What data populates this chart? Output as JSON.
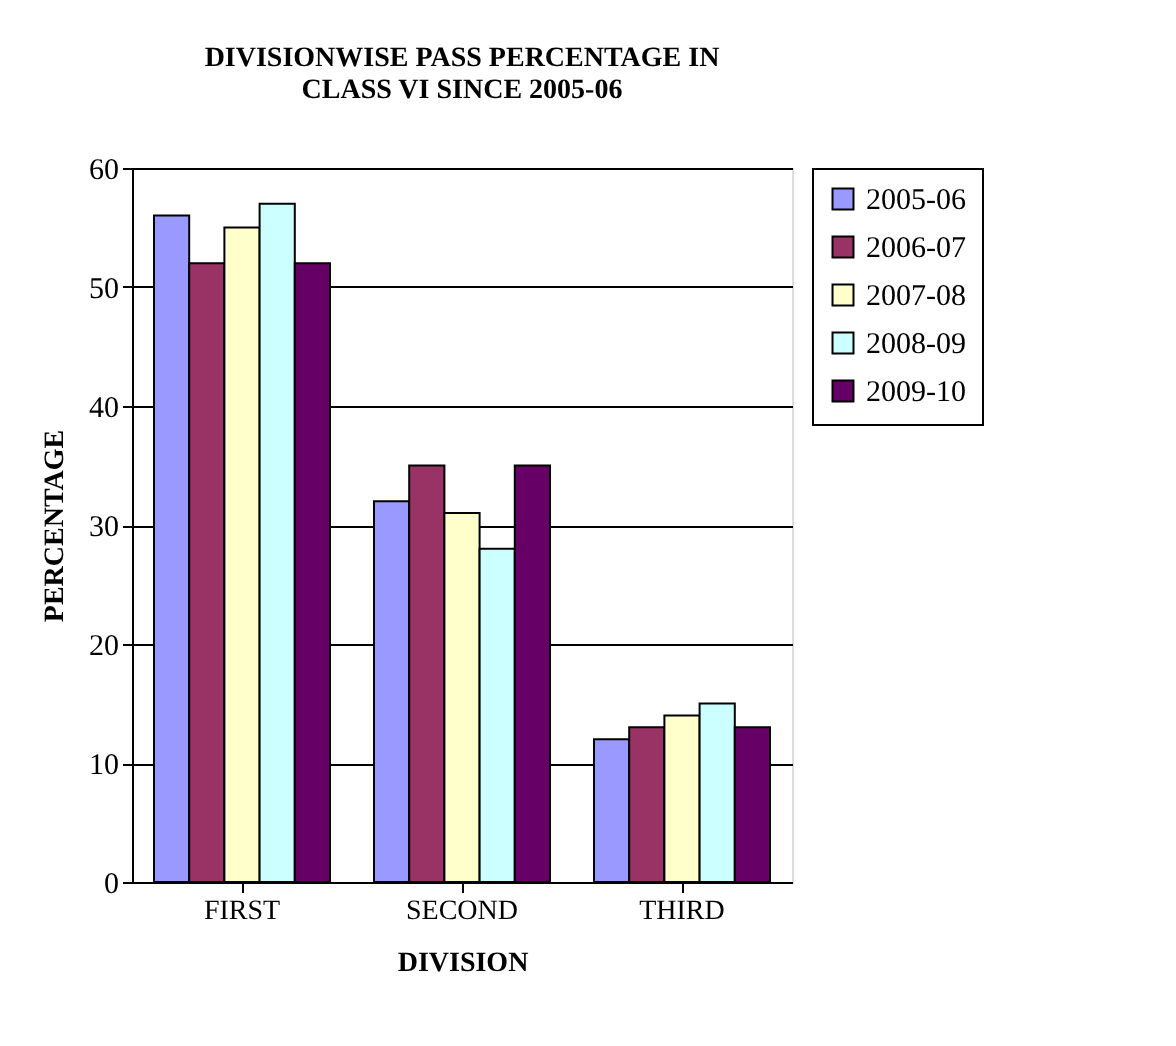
{
  "chart_data": {
    "type": "bar",
    "title": [
      "DIVISIONWISE PASS PERCENTAGE IN",
      "CLASS VI SINCE 2005-06"
    ],
    "xlabel": "DIVISION",
    "ylabel": "PERCENTAGE",
    "categories": [
      "FIRST",
      "SECOND",
      "THIRD"
    ],
    "series": [
      {
        "name": "2005-06",
        "color": "#9999ff",
        "values": [
          56,
          32,
          12
        ]
      },
      {
        "name": "2006-07",
        "color": "#993366",
        "values": [
          52,
          35,
          13
        ]
      },
      {
        "name": "2007-08",
        "color": "#ffffcc",
        "values": [
          55,
          31,
          14
        ]
      },
      {
        "name": "2008-09",
        "color": "#ccffff",
        "values": [
          57,
          28,
          15
        ]
      },
      {
        "name": "2009-10",
        "color": "#660066",
        "values": [
          52,
          35,
          13
        ]
      }
    ],
    "ylim": [
      0,
      60
    ],
    "yticks": [
      0,
      10,
      20,
      30,
      40,
      50,
      60
    ],
    "grid": "y",
    "legend": "right"
  }
}
